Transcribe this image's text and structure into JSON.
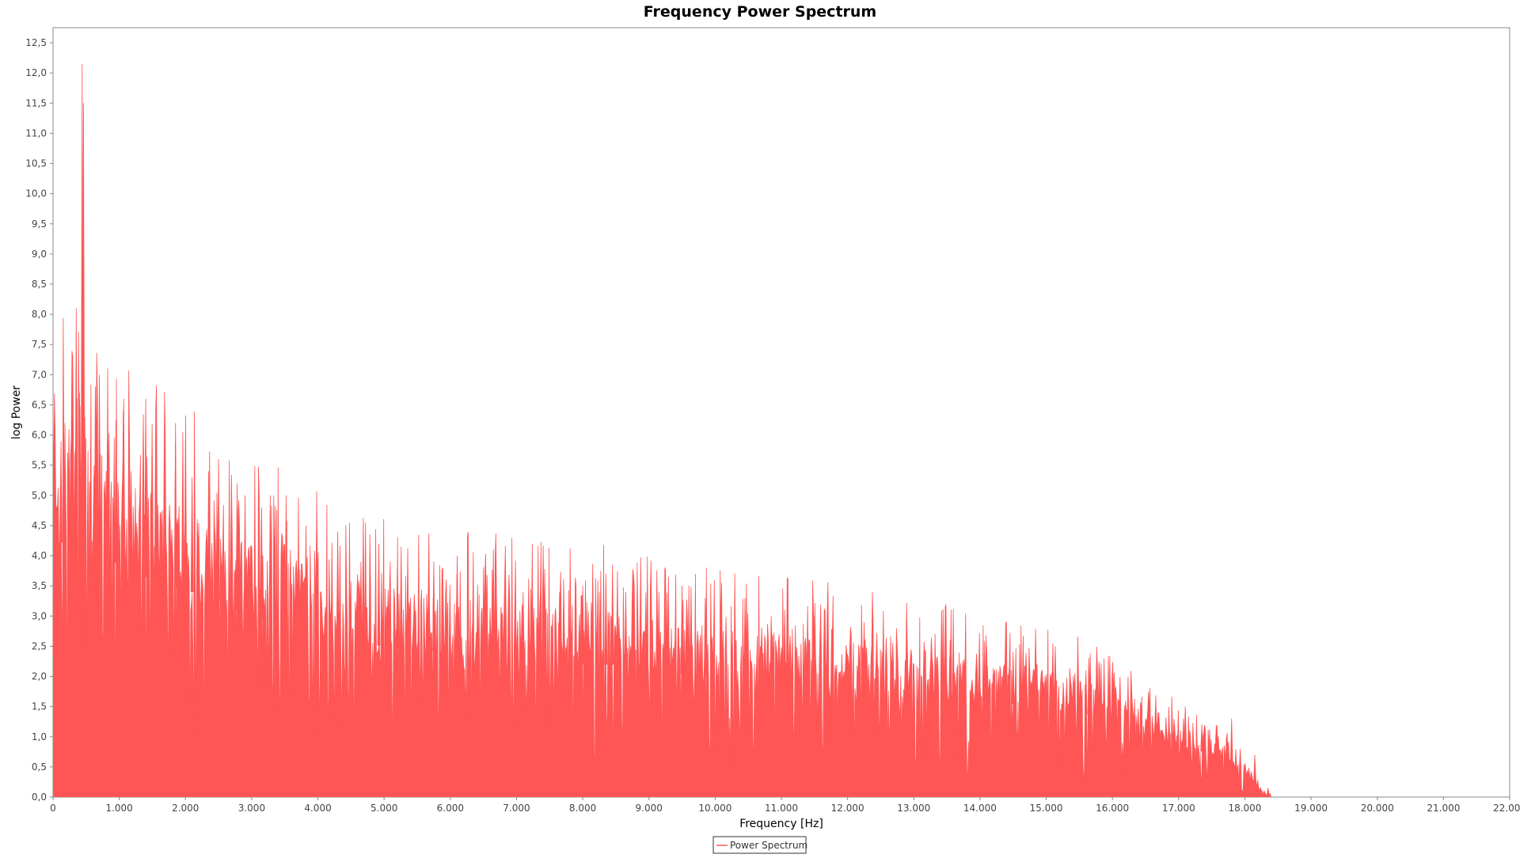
{
  "chart_data": {
    "type": "area",
    "title": "Frequency Power Spectrum",
    "xlabel": "Frequency [Hz]",
    "ylabel": "log Power",
    "xlim": [
      0,
      22000
    ],
    "ylim": [
      0,
      12.75
    ],
    "x_ticks": [
      0,
      1000,
      2000,
      3000,
      4000,
      5000,
      6000,
      7000,
      8000,
      9000,
      10000,
      11000,
      12000,
      13000,
      14000,
      15000,
      16000,
      17000,
      18000,
      19000,
      20000,
      21000,
      22000
    ],
    "x_tick_labels": [
      "0",
      "1.000",
      "2.000",
      "3.000",
      "4.000",
      "5.000",
      "6.000",
      "7.000",
      "8.000",
      "9.000",
      "10.000",
      "11.000",
      "12.000",
      "13.000",
      "14.000",
      "15.000",
      "16.000",
      "17.000",
      "18.000",
      "19.000",
      "20.000",
      "21.000",
      "22.000"
    ],
    "y_ticks": [
      0,
      0.5,
      1.0,
      1.5,
      2.0,
      2.5,
      3.0,
      3.5,
      4.0,
      4.5,
      5.0,
      5.5,
      6.0,
      6.5,
      7.0,
      7.5,
      8.0,
      8.5,
      9.0,
      9.5,
      10.0,
      10.5,
      11.0,
      11.5,
      12.0,
      12.5
    ],
    "y_tick_labels": [
      "0,0",
      "0,5",
      "1,0",
      "1,5",
      "2,0",
      "2,5",
      "3,0",
      "3,5",
      "4,0",
      "4,5",
      "5,0",
      "5,5",
      "6,0",
      "6,5",
      "7,0",
      "7,5",
      "8,0",
      "8,5",
      "9,0",
      "9,5",
      "10,0",
      "10,5",
      "11,0",
      "11,5",
      "12,0",
      "12,5"
    ],
    "grid": false,
    "legend_position": "bottom-center",
    "series": [
      {
        "name": "Power Spectrum",
        "color": "#ff5555",
        "envelope_x": [
          0,
          100,
          200,
          300,
          350,
          400,
          450,
          500,
          600,
          700,
          800,
          1000,
          1200,
          1400,
          1600,
          1800,
          2000,
          2200,
          2500,
          3000,
          3500,
          4000,
          4500,
          5000,
          5500,
          6000,
          6500,
          7000,
          7500,
          8000,
          8500,
          9000,
          9500,
          10000,
          10500,
          11000,
          11500,
          12000,
          12500,
          13000,
          13500,
          14000,
          14500,
          15000,
          15500,
          16000,
          16500,
          17000,
          17500,
          18000,
          18100,
          18200,
          18300,
          18500,
          19000,
          20000,
          21000,
          22000
        ],
        "envelope_y": [
          4.3,
          4.2,
          4.3,
          4.4,
          4.2,
          4.5,
          4.6,
          4.3,
          4.2,
          4.1,
          4.0,
          3.85,
          3.75,
          3.65,
          3.6,
          3.5,
          3.45,
          3.35,
          3.25,
          3.0,
          2.85,
          2.7,
          2.6,
          2.5,
          2.45,
          2.4,
          2.3,
          2.3,
          2.25,
          2.2,
          2.2,
          2.1,
          2.05,
          2.0,
          1.95,
          1.95,
          1.9,
          1.85,
          1.8,
          1.75,
          1.7,
          1.6,
          1.55,
          1.5,
          1.4,
          1.3,
          1.1,
          0.9,
          0.7,
          0.4,
          0.3,
          0.15,
          0.05,
          0.0,
          0.0,
          0.0,
          0.0,
          0.0
        ],
        "peaks": [
          {
            "x": 30,
            "y": 4.9
          },
          {
            "x": 120,
            "y": 5.9
          },
          {
            "x": 180,
            "y": 6.2
          },
          {
            "x": 240,
            "y": 6.1
          },
          {
            "x": 350,
            "y": 8.1
          },
          {
            "x": 400,
            "y": 6.7
          },
          {
            "x": 440,
            "y": 12.15
          },
          {
            "x": 460,
            "y": 11.5
          },
          {
            "x": 480,
            "y": 6.3
          },
          {
            "x": 620,
            "y": 5.5
          },
          {
            "x": 700,
            "y": 7.0
          },
          {
            "x": 820,
            "y": 5.9
          },
          {
            "x": 950,
            "y": 6.25
          },
          {
            "x": 1060,
            "y": 6.4
          },
          {
            "x": 1180,
            "y": 5.4
          },
          {
            "x": 1400,
            "y": 6.6
          },
          {
            "x": 1550,
            "y": 6.0
          },
          {
            "x": 1680,
            "y": 5.9
          },
          {
            "x": 1850,
            "y": 6.2
          },
          {
            "x": 1960,
            "y": 6.05
          },
          {
            "x": 2100,
            "y": 5.3
          },
          {
            "x": 2350,
            "y": 5.4
          },
          {
            "x": 2500,
            "y": 5.6
          },
          {
            "x": 2780,
            "y": 5.2
          },
          {
            "x": 2900,
            "y": 5.0
          },
          {
            "x": 3150,
            "y": 4.8
          },
          {
            "x": 3280,
            "y": 5.0
          },
          {
            "x": 3520,
            "y": 5.0
          },
          {
            "x": 3820,
            "y": 4.5
          },
          {
            "x": 3980,
            "y": 4.4
          },
          {
            "x": 4300,
            "y": 4.4
          },
          {
            "x": 4650,
            "y": 3.9
          },
          {
            "x": 4920,
            "y": 4.2
          },
          {
            "x": 5200,
            "y": 3.8
          },
          {
            "x": 5750,
            "y": 3.9
          },
          {
            "x": 6100,
            "y": 3.7
          },
          {
            "x": 6650,
            "y": 4.1
          },
          {
            "x": 7100,
            "y": 3.4
          },
          {
            "x": 7650,
            "y": 3.4
          },
          {
            "x": 8000,
            "y": 3.5
          },
          {
            "x": 8350,
            "y": 3.7
          },
          {
            "x": 8450,
            "y": 3.85
          },
          {
            "x": 8650,
            "y": 3.4
          },
          {
            "x": 9150,
            "y": 3.4
          },
          {
            "x": 9500,
            "y": 3.5
          },
          {
            "x": 9850,
            "y": 3.3
          },
          {
            "x": 10450,
            "y": 3.3
          },
          {
            "x": 11050,
            "y": 3.1
          },
          {
            "x": 11500,
            "y": 3.0
          },
          {
            "x": 12250,
            "y": 2.9
          },
          {
            "x": 12900,
            "y": 2.6
          },
          {
            "x": 13550,
            "y": 2.6
          },
          {
            "x": 14100,
            "y": 2.5
          },
          {
            "x": 14500,
            "y": 2.4
          },
          {
            "x": 15100,
            "y": 2.55
          },
          {
            "x": 15600,
            "y": 2.1
          },
          {
            "x": 16200,
            "y": 1.6
          },
          {
            "x": 16700,
            "y": 1.4
          },
          {
            "x": 17100,
            "y": 1.5
          },
          {
            "x": 17350,
            "y": 1.2
          },
          {
            "x": 17800,
            "y": 1.3
          },
          {
            "x": 18150,
            "y": 0.7
          },
          {
            "x": 18350,
            "y": 0.15
          }
        ]
      }
    ]
  }
}
